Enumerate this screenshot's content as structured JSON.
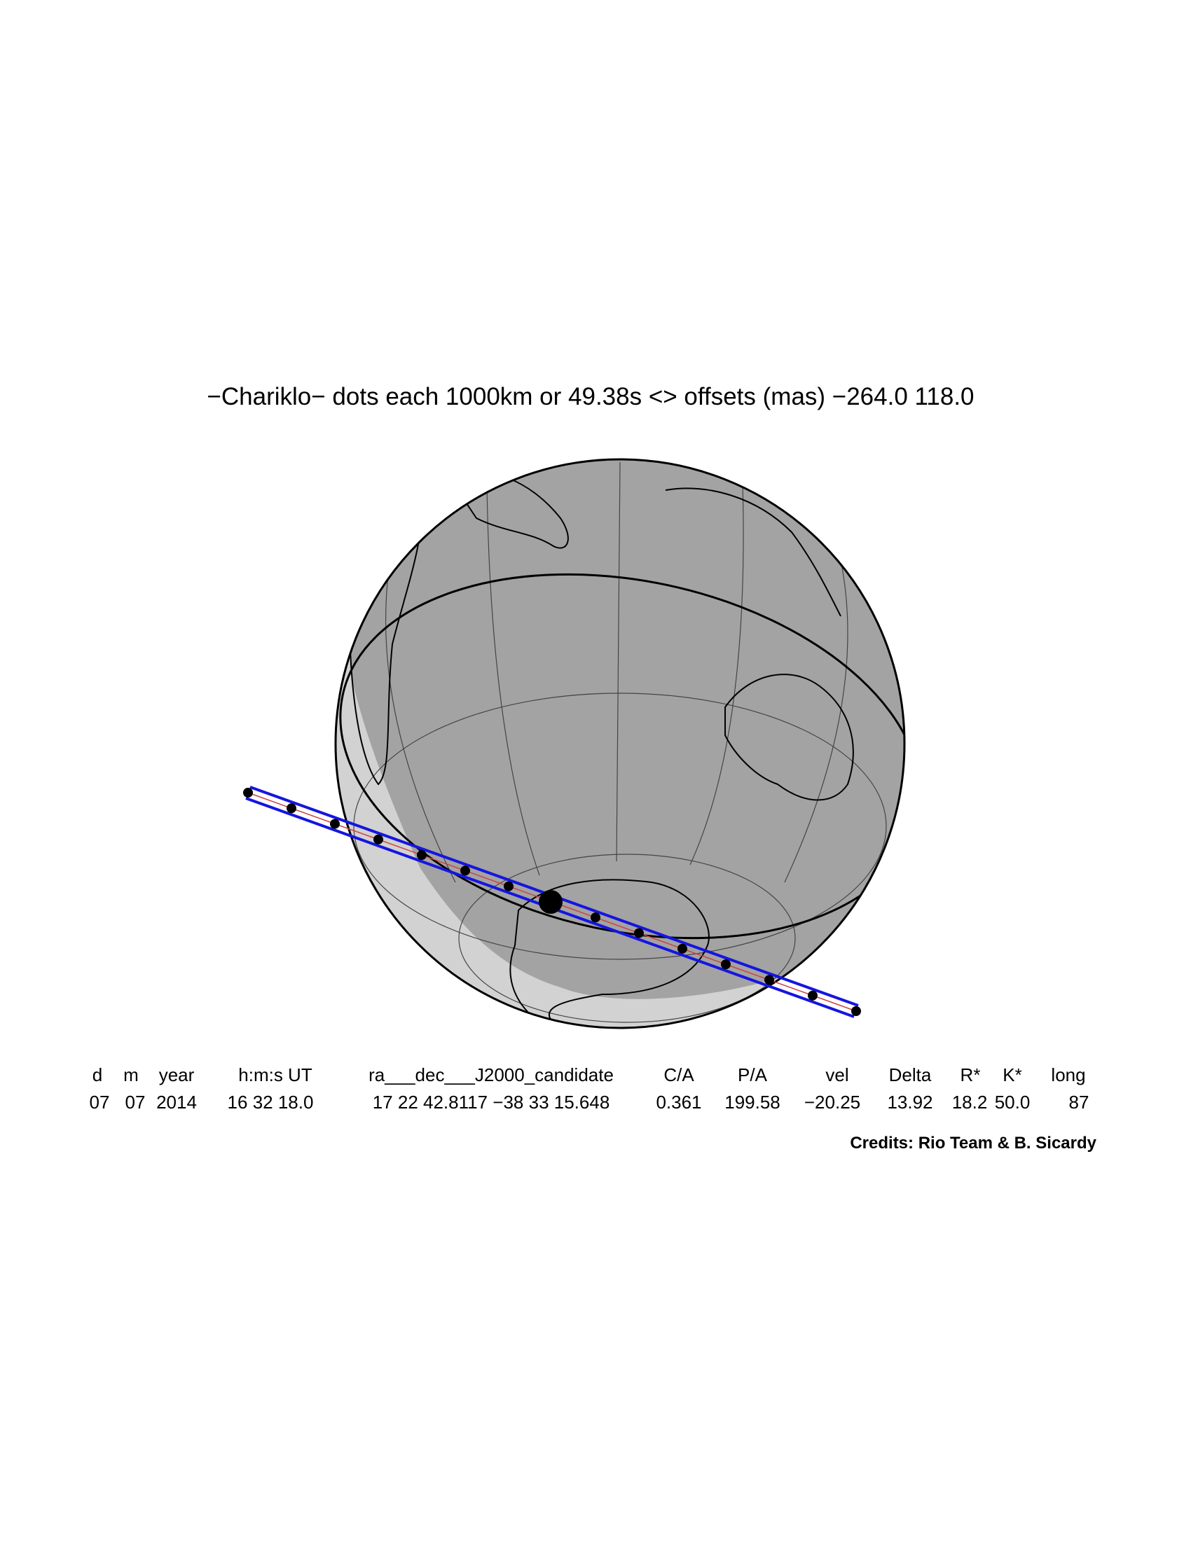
{
  "title": "−Chariklo− dots each 1000km or 49.38s <> offsets (mas) −264.0  118.0",
  "table": {
    "header": [
      "d",
      "m",
      "year",
      "h:m:s UT",
      "ra___dec___J2000_candidate",
      "C/A",
      "P/A",
      "vel",
      "Delta",
      "R*",
      "K*",
      "long"
    ],
    "values": [
      "07",
      "07",
      "2014",
      "16 32 18.0",
      "17 22 42.8117 −38 33 15.648",
      "0.361",
      "199.58",
      "−20.25",
      "13.92",
      "18.2",
      "50.0",
      "87"
    ]
  },
  "credits": "Credits: Rio Team & B. Sicardy"
}
